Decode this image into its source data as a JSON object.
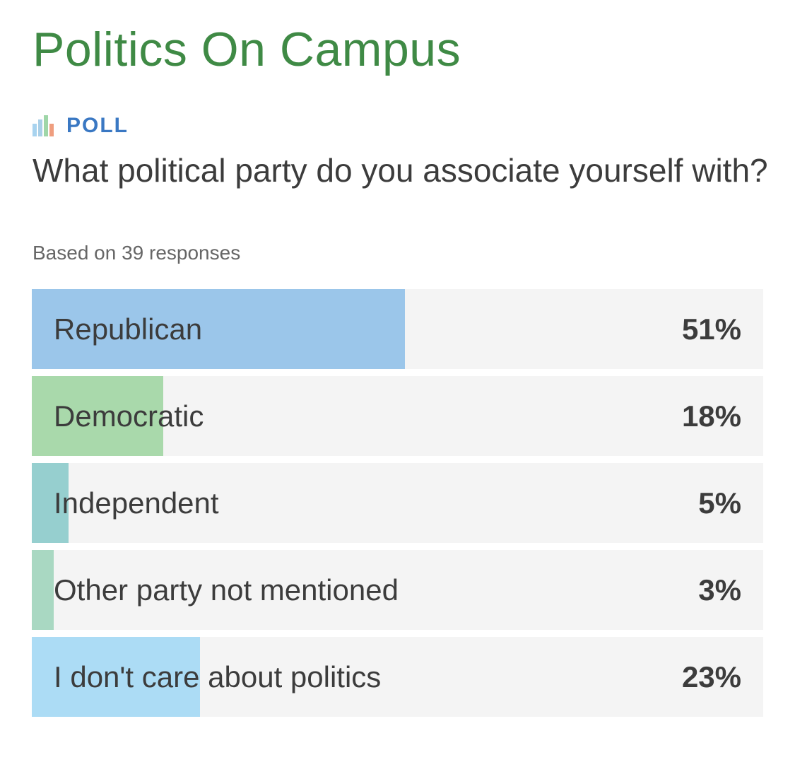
{
  "page": {
    "title": "Politics On Campus",
    "title_color": "#3f8a45"
  },
  "poll": {
    "tag": "POLL",
    "tag_color": "#3a78c3",
    "icon": "bar-chart-icon",
    "icon_colors": [
      "#a8d3ef",
      "#a9cfe7",
      "#9fd6a8",
      "#ef9e7f"
    ],
    "question": "What political party do you associate yourself with?",
    "responses_text": "Based on 39 responses",
    "options": [
      {
        "label": "Republican",
        "percent": 51,
        "percent_label": "51%",
        "color": "#9bc6ea"
      },
      {
        "label": "Democratic",
        "percent": 18,
        "percent_label": "18%",
        "color": "#a9d9ab"
      },
      {
        "label": "Independent",
        "percent": 5,
        "percent_label": "5%",
        "color": "#96cfcf"
      },
      {
        "label": "Other party not mentioned",
        "percent": 3,
        "percent_label": "3%",
        "color": "#a9d8c2"
      },
      {
        "label": "I don't care about politics",
        "percent": 23,
        "percent_label": "23%",
        "color": "#acdcf5"
      }
    ]
  }
}
